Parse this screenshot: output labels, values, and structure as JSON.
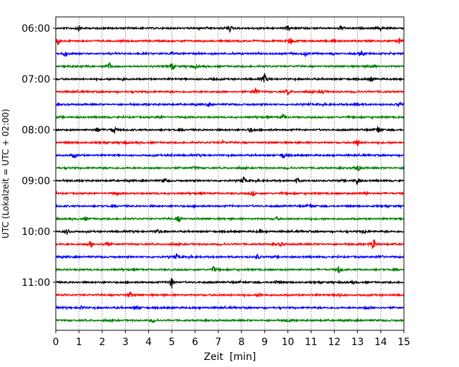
{
  "chart_data": {
    "type": "line",
    "title": "",
    "xlabel": "Zeit  [min]",
    "ylabel": "UTC (Lokalzeit = UTC + 02:00)",
    "xlim": [
      0,
      15
    ],
    "x_ticks": [
      "0",
      "1",
      "2",
      "3",
      "4",
      "5",
      "6",
      "7",
      "8",
      "9",
      "10",
      "11",
      "12",
      "13",
      "14",
      "15"
    ],
    "y_ticks": [
      "06:00",
      "07:00",
      "08:00",
      "09:00",
      "10:00",
      "11:00"
    ],
    "grid": "vertical dotted lines at each minute",
    "colors": [
      "#000000",
      "#ff0000",
      "#0000ff",
      "#008000"
    ],
    "series": [
      {
        "start_utc": "06:00",
        "color": "#000000",
        "events": [
          [
            1.0,
            0.5
          ],
          [
            7.5,
            0.6
          ],
          [
            10.0,
            0.5
          ],
          [
            12.3,
            0.5
          ],
          [
            14.0,
            0.4
          ]
        ]
      },
      {
        "start_utc": "06:15",
        "color": "#ff0000",
        "events": [
          [
            0.1,
            0.8
          ],
          [
            10.1,
            0.8
          ],
          [
            12.0,
            0.4
          ],
          [
            14.8,
            0.5
          ]
        ]
      },
      {
        "start_utc": "06:30",
        "color": "#0000ff",
        "events": [
          [
            0.4,
            0.6
          ],
          [
            5.0,
            0.4
          ],
          [
            10.8,
            0.4
          ],
          [
            13.2,
            0.5
          ]
        ]
      },
      {
        "start_utc": "06:45",
        "color": "#008000",
        "events": [
          [
            2.3,
            0.8
          ],
          [
            5.0,
            0.8
          ],
          [
            6.0,
            0.4
          ],
          [
            13.6,
            0.5
          ]
        ]
      },
      {
        "start_utc": "07:00",
        "color": "#000000",
        "events": [
          [
            6.8,
            0.4
          ],
          [
            9.0,
            1.0
          ],
          [
            13.6,
            0.6
          ],
          [
            2.9,
            0.3
          ]
        ]
      },
      {
        "start_utc": "07:15",
        "color": "#ff0000",
        "events": [
          [
            8.6,
            0.8
          ],
          [
            10.0,
            0.6
          ],
          [
            11.5,
            0.4
          ]
        ]
      },
      {
        "start_utc": "07:30",
        "color": "#0000ff",
        "events": [
          [
            6.6,
            0.5
          ],
          [
            13.0,
            0.4
          ],
          [
            14.8,
            0.5
          ]
        ]
      },
      {
        "start_utc": "07:45",
        "color": "#008000",
        "events": [
          [
            9.8,
            0.5
          ],
          [
            4.5,
            0.3
          ]
        ]
      },
      {
        "start_utc": "08:00",
        "color": "#000000",
        "events": [
          [
            1.8,
            0.5
          ],
          [
            2.5,
            0.8
          ],
          [
            8.4,
            0.5
          ],
          [
            13.9,
            0.8
          ]
        ]
      },
      {
        "start_utc": "08:15",
        "color": "#ff0000",
        "events": [
          [
            13.0,
            0.8
          ],
          [
            3.0,
            0.3
          ],
          [
            7.2,
            0.3
          ]
        ]
      },
      {
        "start_utc": "08:30",
        "color": "#0000ff",
        "events": [
          [
            0.8,
            0.5
          ],
          [
            9.8,
            0.7
          ],
          [
            5.0,
            0.3
          ]
        ]
      },
      {
        "start_utc": "08:45",
        "color": "#008000",
        "events": [
          [
            13.0,
            0.9
          ],
          [
            6.0,
            0.3
          ]
        ]
      },
      {
        "start_utc": "09:00",
        "color": "#000000",
        "events": [
          [
            4.7,
            0.5
          ],
          [
            8.1,
            0.7
          ],
          [
            10.4,
            0.6
          ],
          [
            13.0,
            0.8
          ]
        ]
      },
      {
        "start_utc": "09:15",
        "color": "#ff0000",
        "events": [
          [
            2.6,
            0.4
          ],
          [
            8.5,
            0.4
          ],
          [
            13.3,
            0.4
          ]
        ]
      },
      {
        "start_utc": "09:30",
        "color": "#0000ff",
        "events": [
          [
            6.0,
            0.3
          ],
          [
            11.0,
            0.3
          ]
        ]
      },
      {
        "start_utc": "09:45",
        "color": "#008000",
        "events": [
          [
            1.3,
            0.4
          ],
          [
            5.3,
            0.8
          ],
          [
            9.5,
            0.3
          ]
        ]
      },
      {
        "start_utc": "10:00",
        "color": "#000000",
        "events": [
          [
            0.5,
            0.6
          ],
          [
            4.4,
            0.4
          ],
          [
            8.8,
            0.3
          ],
          [
            13.3,
            0.4
          ]
        ]
      },
      {
        "start_utc": "10:15",
        "color": "#ff0000",
        "events": [
          [
            1.5,
            0.6
          ],
          [
            2.2,
            0.7
          ],
          [
            9.7,
            0.4
          ],
          [
            13.7,
            1.3
          ]
        ]
      },
      {
        "start_utc": "10:30",
        "color": "#0000ff",
        "events": [
          [
            5.2,
            0.5
          ],
          [
            8.7,
            0.6
          ],
          [
            14.0,
            0.5
          ]
        ]
      },
      {
        "start_utc": "10:45",
        "color": "#008000",
        "events": [
          [
            6.8,
            0.6
          ],
          [
            12.2,
            0.8
          ]
        ]
      },
      {
        "start_utc": "11:00",
        "color": "#000000",
        "events": [
          [
            5.0,
            1.1
          ],
          [
            9.5,
            0.3
          ],
          [
            12.8,
            0.3
          ]
        ]
      },
      {
        "start_utc": "11:15",
        "color": "#ff0000",
        "events": [
          [
            3.2,
            0.6
          ],
          [
            8.8,
            0.3
          ],
          [
            12.2,
            0.4
          ]
        ]
      },
      {
        "start_utc": "11:30",
        "color": "#0000ff",
        "events": [
          [
            1.1,
            0.3
          ],
          [
            3.5,
            0.4
          ],
          [
            13.4,
            0.5
          ]
        ]
      },
      {
        "start_utc": "11:45",
        "color": "#008000",
        "events": [
          [
            4.2,
            0.3
          ],
          [
            10.0,
            0.3
          ]
        ]
      }
    ]
  }
}
